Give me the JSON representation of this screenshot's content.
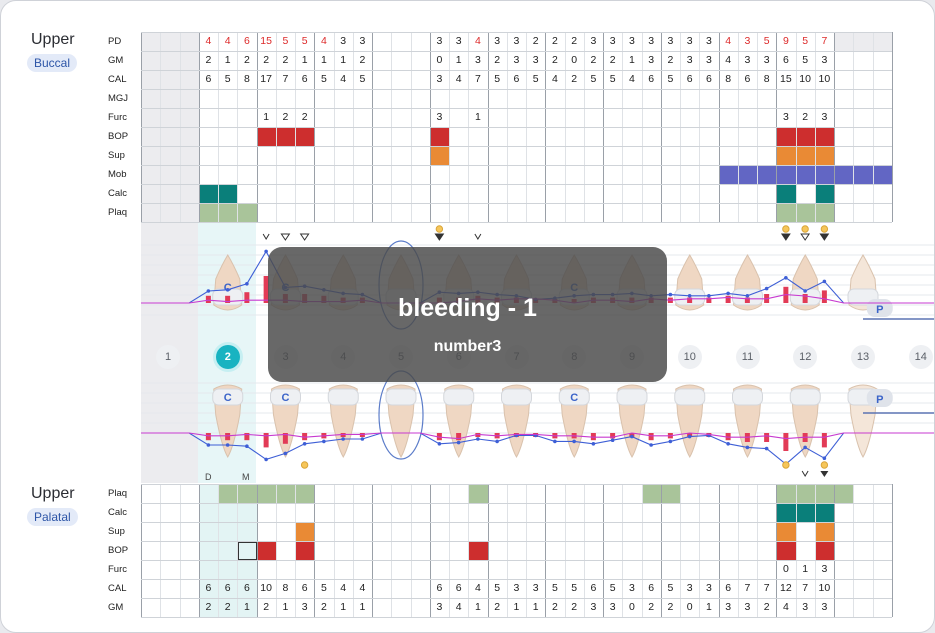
{
  "buccal_title": "Upper",
  "buccal_badge": "Buccal",
  "palatal_title": "Upper",
  "palatal_badge": "Palatal",
  "buccal_row_labels": [
    "PD",
    "GM",
    "CAL",
    "MGJ",
    "Furc",
    "BOP",
    "Sup",
    "Mob",
    "Calc",
    "Plaq"
  ],
  "palatal_row_labels": [
    "Plaq",
    "Calc",
    "Sup",
    "BOP",
    "Furc",
    "CAL",
    "GM"
  ],
  "tooth_numbers": [
    "1",
    "2",
    "3",
    "4",
    "5",
    "6",
    "7",
    "8",
    "9",
    "10",
    "11",
    "12",
    "13",
    "14"
  ],
  "selected_tooth": "2",
  "implant_letter": "C",
  "pontic_letter": "P",
  "dm_labels": [
    "D",
    "M"
  ],
  "buccal_text_rows": {
    "PD": [
      "",
      "",
      "",
      "4",
      "4",
      "6",
      "15",
      "5",
      "5",
      "4",
      "3",
      "3",
      "",
      "",
      "",
      "3",
      "3",
      "4",
      "3",
      "3",
      "2",
      "2",
      "2",
      "3",
      "3",
      "3",
      "3",
      "3",
      "3",
      "3",
      "4",
      "3",
      "5",
      "9",
      "5",
      "7",
      "",
      "",
      ""
    ],
    "GM": [
      "",
      "",
      "",
      "2",
      "1",
      "2",
      "2",
      "2",
      "1",
      "1",
      "1",
      "2",
      "",
      "",
      "",
      "0",
      "1",
      "3",
      "2",
      "3",
      "3",
      "2",
      "0",
      "2",
      "2",
      "1",
      "3",
      "2",
      "3",
      "3",
      "4",
      "3",
      "3",
      "6",
      "5",
      "3",
      "",
      "",
      ""
    ],
    "CAL": [
      "",
      "",
      "",
      "6",
      "5",
      "8",
      "17",
      "7",
      "6",
      "5",
      "4",
      "5",
      "",
      "",
      "",
      "3",
      "4",
      "7",
      "5",
      "6",
      "5",
      "4",
      "2",
      "5",
      "5",
      "4",
      "6",
      "5",
      "6",
      "6",
      "8",
      "6",
      "8",
      "15",
      "10",
      "10",
      "",
      "",
      ""
    ],
    "Furc": [
      "",
      "",
      "",
      "",
      "",
      "",
      "1",
      "2",
      "2",
      "",
      "",
      "",
      "",
      "",
      "",
      "3",
      "",
      "1",
      "",
      "",
      "",
      "",
      "",
      "",
      "",
      "",
      "",
      "",
      "",
      "",
      "",
      "",
      "",
      "3",
      "2",
      "3",
      "",
      "",
      ""
    ]
  },
  "buccal_pd_red": [
    3,
    4,
    5,
    6,
    7,
    8,
    9,
    17,
    30,
    31,
    32,
    33,
    34,
    35
  ],
  "palatal_text_rows": {
    "Furc": [
      "",
      "",
      "",
      "",
      "",
      "",
      "",
      "",
      "",
      "",
      "",
      "",
      "",
      "",
      "",
      "",
      "",
      "",
      "",
      "",
      "",
      "",
      "",
      "",
      "",
      "",
      "",
      "",
      "",
      "",
      "",
      "",
      "",
      "0",
      "1",
      "3",
      "",
      "",
      ""
    ],
    "CAL": [
      "",
      "",
      "",
      "6",
      "6",
      "6",
      "10",
      "8",
      "6",
      "5",
      "4",
      "4",
      "",
      "",
      "",
      "6",
      "6",
      "4",
      "5",
      "3",
      "3",
      "5",
      "5",
      "6",
      "5",
      "3",
      "6",
      "5",
      "3",
      "3",
      "6",
      "7",
      "7",
      "12",
      "7",
      "10",
      "",
      "",
      ""
    ],
    "GM": [
      "",
      "",
      "",
      "2",
      "2",
      "1",
      "2",
      "1",
      "3",
      "2",
      "1",
      "1",
      "",
      "",
      "",
      "3",
      "4",
      "1",
      "2",
      "1",
      "1",
      "2",
      "2",
      "3",
      "3",
      "0",
      "2",
      "2",
      "0",
      "1",
      "3",
      "3",
      "2",
      "4",
      "3",
      "3",
      "",
      "",
      ""
    ]
  },
  "overlay": {
    "title": "bleeding - 1",
    "subtitle": "number3"
  },
  "colors": {
    "bop": "#cd2e2e",
    "sup": "#e98a35",
    "mob": "#6266c4",
    "calc": "#0a7f7a",
    "plaq": "#a9c49a",
    "sel": "#18b3c1",
    "pd_red": "#dd2a2a"
  }
}
